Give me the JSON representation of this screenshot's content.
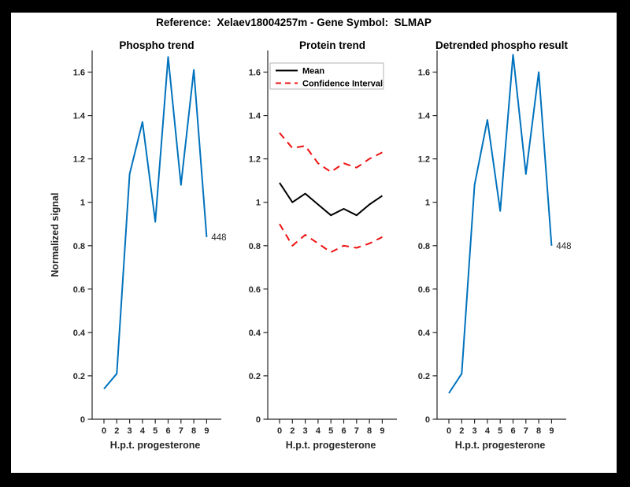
{
  "figure": {
    "title": "Reference:  Xelaev18004257m - Gene Symbol:  SLMAP",
    "background_color": "#ffffff",
    "frame_color": "#000000",
    "axis_color": "#262626",
    "accent_blue": "#0072BD",
    "accent_red": "#EE1111"
  },
  "chart_data": [
    {
      "type": "line",
      "title": "Phospho trend",
      "xlabel": "H.p.t. progesterone",
      "ylabel": "Normalized signal",
      "x_tick_labels": [
        "0",
        "2",
        "3",
        "4",
        "5",
        "6",
        "7",
        "8",
        "9"
      ],
      "y_ticks": [
        "0",
        "0.2",
        "0.4",
        "0.6",
        "0.8",
        "1",
        "1.2",
        "1.4",
        "1.6"
      ],
      "ylim": [
        0,
        1.7
      ],
      "grid": false,
      "legend": null,
      "series": [
        {
          "name": "phospho-signal",
          "color": "#0072BD",
          "style": "solid",
          "values": [
            0.14,
            0.21,
            1.13,
            1.37,
            0.91,
            1.67,
            1.08,
            1.61,
            0.84
          ]
        }
      ],
      "annotation": {
        "text": "448",
        "at": "last-point"
      }
    },
    {
      "type": "line",
      "title": "Protein trend",
      "xlabel": "H.p.t. progesterone",
      "ylabel": "",
      "x_tick_labels": [
        "0",
        "2",
        "3",
        "4",
        "5",
        "6",
        "7",
        "8",
        "9"
      ],
      "y_ticks": [
        "0",
        "0.2",
        "0.4",
        "0.6",
        "0.8",
        "1",
        "1.2",
        "1.4",
        "1.6"
      ],
      "ylim": [
        0,
        1.7
      ],
      "grid": false,
      "legend": {
        "position": "top-left",
        "entries": [
          {
            "label": "Mean",
            "color": "#000000",
            "style": "solid"
          },
          {
            "label": "Confidence Interval",
            "color": "#EE1111",
            "style": "dashed"
          }
        ]
      },
      "series": [
        {
          "name": "mean",
          "color": "#000000",
          "style": "solid",
          "values": [
            1.09,
            1.0,
            1.04,
            0.99,
            0.94,
            0.97,
            0.94,
            0.99,
            1.03
          ]
        },
        {
          "name": "ci-upper",
          "color": "#EE1111",
          "style": "dashed",
          "values": [
            1.32,
            1.25,
            1.26,
            1.18,
            1.14,
            1.18,
            1.16,
            1.2,
            1.23
          ]
        },
        {
          "name": "ci-lower",
          "color": "#EE1111",
          "style": "dashed",
          "values": [
            0.9,
            0.8,
            0.85,
            0.81,
            0.77,
            0.8,
            0.79,
            0.81,
            0.84
          ]
        }
      ],
      "annotation": null
    },
    {
      "type": "line",
      "title": "Detrended phospho result",
      "xlabel": "H.p.t. progesterone",
      "ylabel": "",
      "x_tick_labels": [
        "0",
        "2",
        "3",
        "4",
        "5",
        "6",
        "7",
        "8",
        "9"
      ],
      "y_ticks": [
        "0",
        "0.2",
        "0.4",
        "0.6",
        "0.8",
        "1",
        "1.2",
        "1.4",
        "1.6"
      ],
      "ylim": [
        0,
        1.7
      ],
      "grid": false,
      "legend": null,
      "series": [
        {
          "name": "detrended-phospho-signal",
          "color": "#0072BD",
          "style": "solid",
          "values": [
            0.12,
            0.21,
            1.08,
            1.38,
            0.96,
            1.68,
            1.13,
            1.6,
            0.8
          ]
        }
      ],
      "annotation": {
        "text": "448",
        "at": "last-point"
      }
    }
  ]
}
